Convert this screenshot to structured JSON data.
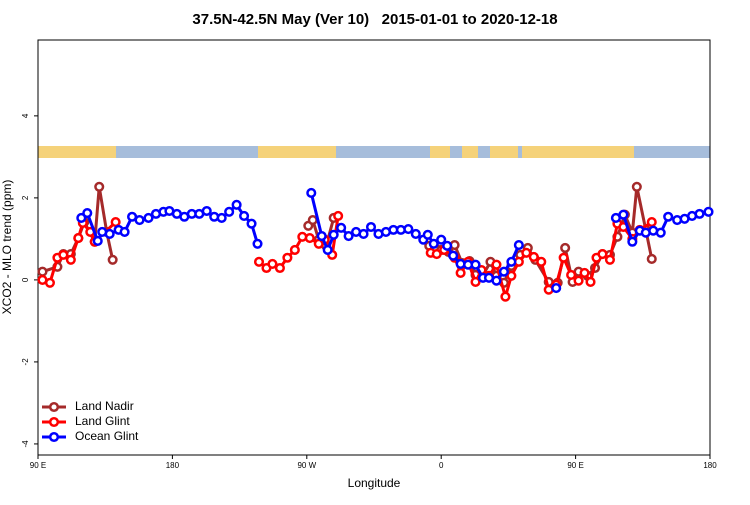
{
  "chart_data": {
    "type": "line",
    "title": "37.5N-42.5N May (Ver 10)   2015-01-01 to 2020-12-18",
    "x_label": "Longitude",
    "y_label": "XCO2 - MLO trend (ppm)",
    "xlim": [
      90,
      540
    ],
    "ylim": [
      -4.27,
      5.85
    ],
    "xticks": [
      {
        "value": 90,
        "label": "90 E"
      },
      180,
      {
        "value": 270,
        "label": "90 W"
      },
      0,
      {
        "value": 450,
        "label": "90 E"
      },
      {
        "value": 540,
        "label": "180"
      }
    ],
    "yticks": [
      -4,
      -2,
      0,
      2,
      4
    ],
    "legend": "bottom-left",
    "series": [
      {
        "name": "Land Nadir",
        "color": "#a52a2a",
        "x": [
          93,
          103,
          107,
          112,
          117,
          121,
          128,
          131,
          136,
          140,
          null,
          271,
          274,
          278,
          283,
          288,
          null,
          352,
          356,
          360,
          365,
          369,
          374,
          379,
          383,
          388,
          393,
          397,
          402,
          407,
          413,
          418,
          423,
          432,
          438,
          443,
          448,
          452,
          458,
          463,
          468,
          473,
          478,
          483,
          488,
          491,
          497,
          501
        ],
        "values": [
          0.2,
          0.32,
          0.63,
          0.63,
          1.02,
          1.41,
          0.93,
          2.27,
          1.17,
          0.49,
          null,
          1.32,
          1.46,
          0.98,
          0.83,
          1.51,
          null,
          0.83,
          0.78,
          0.73,
          0.68,
          0.85,
          0.41,
          0.46,
          0.12,
          0.12,
          0.44,
          0.1,
          -0.07,
          0.34,
          0.61,
          0.78,
          0.49,
          -0.05,
          -0.07,
          0.78,
          -0.05,
          0.2,
          0.1,
          0.29,
          0.63,
          0.61,
          1.05,
          1.59,
          1.15,
          2.27,
          1.22,
          0.51
        ]
      },
      {
        "name": "Land Glint",
        "color": "#ff0000",
        "x": [
          93,
          98,
          103,
          107,
          112,
          117,
          120,
          125,
          128,
          142,
          null,
          238,
          243,
          247,
          252,
          257,
          262,
          267,
          272,
          278,
          282,
          287,
          291,
          null,
          353,
          357,
          362,
          369,
          373,
          378,
          383,
          387,
          392,
          397,
          403,
          407,
          412,
          417,
          422,
          427,
          432,
          437,
          442,
          447,
          452,
          456,
          460,
          464,
          468,
          473,
          478,
          482,
          488,
          493,
          501
        ],
        "values": [
          0,
          -0.07,
          0.54,
          0.61,
          0.49,
          1.02,
          1.39,
          1.17,
          0.93,
          1.41,
          null,
          0.44,
          0.29,
          0.39,
          0.29,
          0.54,
          0.73,
          1.05,
          1.02,
          0.88,
          0.98,
          0.61,
          1.56,
          null,
          0.66,
          0.63,
          0.73,
          0.54,
          0.17,
          0.44,
          -0.05,
          0.24,
          0.1,
          0.37,
          -0.41,
          0.1,
          0.44,
          0.66,
          0.56,
          0.44,
          -0.24,
          -0.12,
          0.54,
          0.12,
          -0.02,
          0.17,
          -0.05,
          0.54,
          0.63,
          0.49,
          1.37,
          1.29,
          1.0,
          1.22,
          1.41
        ]
      },
      {
        "name": "Ocean Glint",
        "color": "#0000ff",
        "x": [
          119,
          123,
          130,
          133,
          138,
          144,
          148,
          153,
          158,
          164,
          169,
          174,
          178,
          183,
          188,
          193,
          198,
          203,
          208,
          213,
          218,
          223,
          228,
          233,
          237,
          null,
          273,
          280,
          284,
          288,
          293,
          298,
          303,
          308,
          313,
          318,
          323,
          328,
          333,
          338,
          343,
          348,
          351,
          355,
          360,
          364,
          368,
          373,
          378,
          383,
          388,
          392,
          397,
          402,
          407,
          412,
          null,
          437,
          null,
          477,
          482,
          488,
          493,
          497,
          502,
          507,
          512,
          518,
          523,
          528,
          533,
          539
        ],
        "values": [
          1.51,
          1.63,
          0.95,
          1.17,
          1.12,
          1.22,
          1.17,
          1.54,
          1.46,
          1.51,
          1.61,
          1.66,
          1.68,
          1.61,
          1.54,
          1.61,
          1.61,
          1.68,
          1.54,
          1.51,
          1.66,
          1.83,
          1.56,
          1.37,
          0.88,
          null,
          2.12,
          1.07,
          0.73,
          1.1,
          1.27,
          1.07,
          1.17,
          1.12,
          1.29,
          1.12,
          1.17,
          1.22,
          1.22,
          1.24,
          1.12,
          0.98,
          1.1,
          0.88,
          0.98,
          0.83,
          0.59,
          0.39,
          0.37,
          0.37,
          0.05,
          0.05,
          -0.02,
          0.2,
          0.44,
          0.85,
          null,
          -0.2,
          null,
          1.51,
          1.59,
          0.93,
          1.2,
          1.15,
          1.2,
          1.15,
          1.54,
          1.46,
          1.49,
          1.56,
          1.61,
          1.66
        ]
      }
    ]
  }
}
